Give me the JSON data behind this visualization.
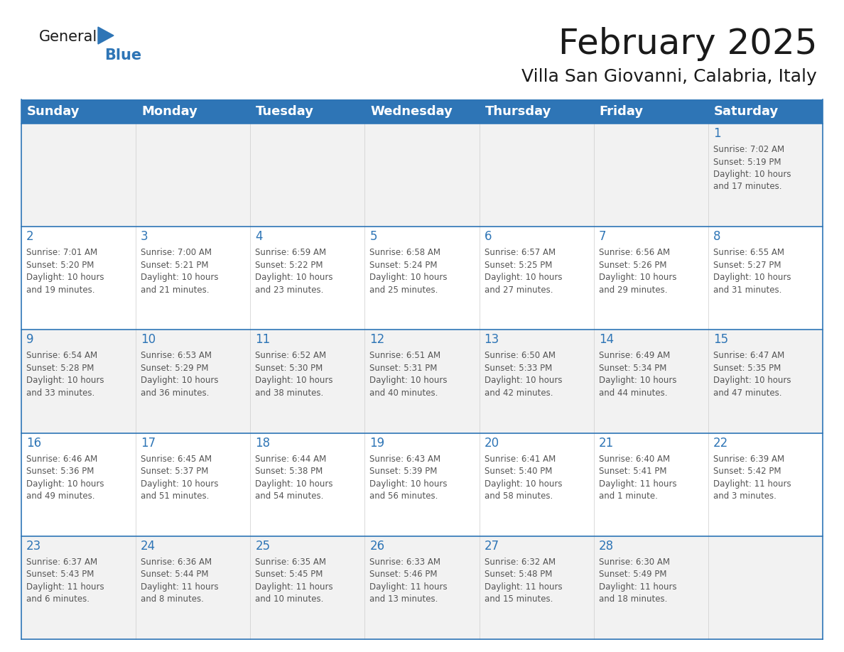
{
  "title": "February 2025",
  "subtitle": "Villa San Giovanni, Calabria, Italy",
  "header_bg": "#2E75B6",
  "header_text_color": "#FFFFFF",
  "cell_border_color": "#2E75B6",
  "day_number_color": "#2E75B6",
  "info_text_color": "#555555",
  "background_color": "#FFFFFF",
  "row_alt_color": "#F2F2F2",
  "days_of_week": [
    "Sunday",
    "Monday",
    "Tuesday",
    "Wednesday",
    "Thursday",
    "Friday",
    "Saturday"
  ],
  "weeks": [
    [
      {
        "day": "",
        "info": ""
      },
      {
        "day": "",
        "info": ""
      },
      {
        "day": "",
        "info": ""
      },
      {
        "day": "",
        "info": ""
      },
      {
        "day": "",
        "info": ""
      },
      {
        "day": "",
        "info": ""
      },
      {
        "day": "1",
        "info": "Sunrise: 7:02 AM\nSunset: 5:19 PM\nDaylight: 10 hours\nand 17 minutes."
      }
    ],
    [
      {
        "day": "2",
        "info": "Sunrise: 7:01 AM\nSunset: 5:20 PM\nDaylight: 10 hours\nand 19 minutes."
      },
      {
        "day": "3",
        "info": "Sunrise: 7:00 AM\nSunset: 5:21 PM\nDaylight: 10 hours\nand 21 minutes."
      },
      {
        "day": "4",
        "info": "Sunrise: 6:59 AM\nSunset: 5:22 PM\nDaylight: 10 hours\nand 23 minutes."
      },
      {
        "day": "5",
        "info": "Sunrise: 6:58 AM\nSunset: 5:24 PM\nDaylight: 10 hours\nand 25 minutes."
      },
      {
        "day": "6",
        "info": "Sunrise: 6:57 AM\nSunset: 5:25 PM\nDaylight: 10 hours\nand 27 minutes."
      },
      {
        "day": "7",
        "info": "Sunrise: 6:56 AM\nSunset: 5:26 PM\nDaylight: 10 hours\nand 29 minutes."
      },
      {
        "day": "8",
        "info": "Sunrise: 6:55 AM\nSunset: 5:27 PM\nDaylight: 10 hours\nand 31 minutes."
      }
    ],
    [
      {
        "day": "9",
        "info": "Sunrise: 6:54 AM\nSunset: 5:28 PM\nDaylight: 10 hours\nand 33 minutes."
      },
      {
        "day": "10",
        "info": "Sunrise: 6:53 AM\nSunset: 5:29 PM\nDaylight: 10 hours\nand 36 minutes."
      },
      {
        "day": "11",
        "info": "Sunrise: 6:52 AM\nSunset: 5:30 PM\nDaylight: 10 hours\nand 38 minutes."
      },
      {
        "day": "12",
        "info": "Sunrise: 6:51 AM\nSunset: 5:31 PM\nDaylight: 10 hours\nand 40 minutes."
      },
      {
        "day": "13",
        "info": "Sunrise: 6:50 AM\nSunset: 5:33 PM\nDaylight: 10 hours\nand 42 minutes."
      },
      {
        "day": "14",
        "info": "Sunrise: 6:49 AM\nSunset: 5:34 PM\nDaylight: 10 hours\nand 44 minutes."
      },
      {
        "day": "15",
        "info": "Sunrise: 6:47 AM\nSunset: 5:35 PM\nDaylight: 10 hours\nand 47 minutes."
      }
    ],
    [
      {
        "day": "16",
        "info": "Sunrise: 6:46 AM\nSunset: 5:36 PM\nDaylight: 10 hours\nand 49 minutes."
      },
      {
        "day": "17",
        "info": "Sunrise: 6:45 AM\nSunset: 5:37 PM\nDaylight: 10 hours\nand 51 minutes."
      },
      {
        "day": "18",
        "info": "Sunrise: 6:44 AM\nSunset: 5:38 PM\nDaylight: 10 hours\nand 54 minutes."
      },
      {
        "day": "19",
        "info": "Sunrise: 6:43 AM\nSunset: 5:39 PM\nDaylight: 10 hours\nand 56 minutes."
      },
      {
        "day": "20",
        "info": "Sunrise: 6:41 AM\nSunset: 5:40 PM\nDaylight: 10 hours\nand 58 minutes."
      },
      {
        "day": "21",
        "info": "Sunrise: 6:40 AM\nSunset: 5:41 PM\nDaylight: 11 hours\nand 1 minute."
      },
      {
        "day": "22",
        "info": "Sunrise: 6:39 AM\nSunset: 5:42 PM\nDaylight: 11 hours\nand 3 minutes."
      }
    ],
    [
      {
        "day": "23",
        "info": "Sunrise: 6:37 AM\nSunset: 5:43 PM\nDaylight: 11 hours\nand 6 minutes."
      },
      {
        "day": "24",
        "info": "Sunrise: 6:36 AM\nSunset: 5:44 PM\nDaylight: 11 hours\nand 8 minutes."
      },
      {
        "day": "25",
        "info": "Sunrise: 6:35 AM\nSunset: 5:45 PM\nDaylight: 11 hours\nand 10 minutes."
      },
      {
        "day": "26",
        "info": "Sunrise: 6:33 AM\nSunset: 5:46 PM\nDaylight: 11 hours\nand 13 minutes."
      },
      {
        "day": "27",
        "info": "Sunrise: 6:32 AM\nSunset: 5:48 PM\nDaylight: 11 hours\nand 15 minutes."
      },
      {
        "day": "28",
        "info": "Sunrise: 6:30 AM\nSunset: 5:49 PM\nDaylight: 11 hours\nand 18 minutes."
      },
      {
        "day": "",
        "info": ""
      }
    ]
  ],
  "logo_general_color": "#1a1a1a",
  "logo_blue_color": "#2E75B6",
  "title_fontsize": 36,
  "subtitle_fontsize": 18,
  "header_fontsize": 13,
  "day_number_fontsize": 12,
  "info_fontsize": 8.5
}
